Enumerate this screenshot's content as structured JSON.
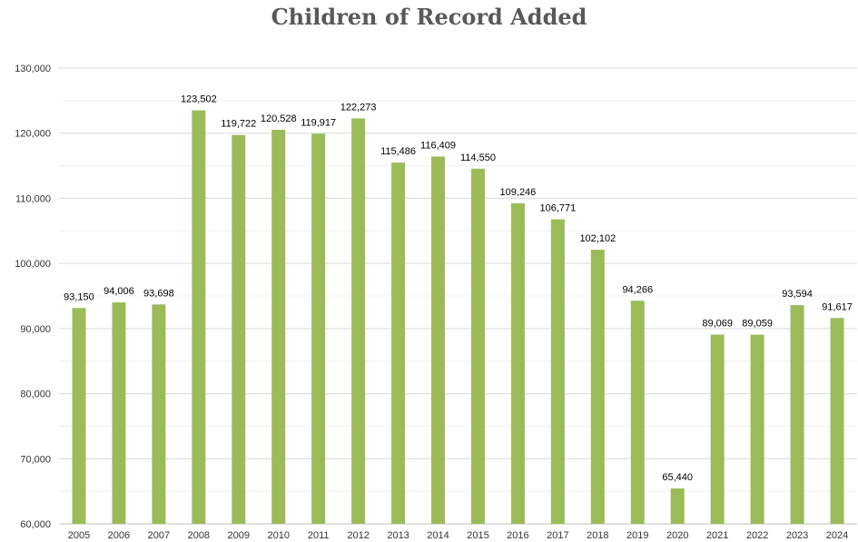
{
  "chart_data": {
    "type": "bar",
    "title": "Children of Record Added",
    "xlabel": "",
    "ylabel": "",
    "categories": [
      "2005",
      "2006",
      "2007",
      "2008",
      "2009",
      "2010",
      "2011",
      "2012",
      "2013",
      "2014",
      "2015",
      "2016",
      "2017",
      "2018",
      "2019",
      "2020",
      "2021",
      "2022",
      "2023",
      "2024"
    ],
    "values": [
      93150,
      94006,
      93698,
      123502,
      119722,
      120528,
      119917,
      122273,
      115486,
      116409,
      114550,
      109246,
      106771,
      102102,
      94266,
      65440,
      89069,
      89059,
      93594,
      91617
    ],
    "data_labels": [
      "93,150",
      "94,006",
      "93,698",
      "123,502",
      "119,722",
      "120,528",
      "119,917",
      "122,273",
      "115,486",
      "116,409",
      "114,550",
      "109,246",
      "106,771",
      "102,102",
      "94,266",
      "65,440",
      "89,069",
      "89,059",
      "93,594",
      "91,617"
    ],
    "ylim": [
      60000,
      130000
    ],
    "y_ticks": [
      60000,
      70000,
      80000,
      90000,
      100000,
      110000,
      120000,
      130000
    ],
    "y_tick_labels": [
      "60,000",
      "70,000",
      "80,000",
      "90,000",
      "100,000",
      "110,000",
      "120,000",
      "130,000"
    ],
    "grid": true,
    "legend": "none",
    "colors": {
      "bar": "#9bbb59",
      "gridline": "#d9d9d9",
      "minor_gridline": "#f0f0f0",
      "axis": "#bfbfbf",
      "text": "#000000",
      "tick_text": "#333333",
      "title": "#595959"
    }
  }
}
